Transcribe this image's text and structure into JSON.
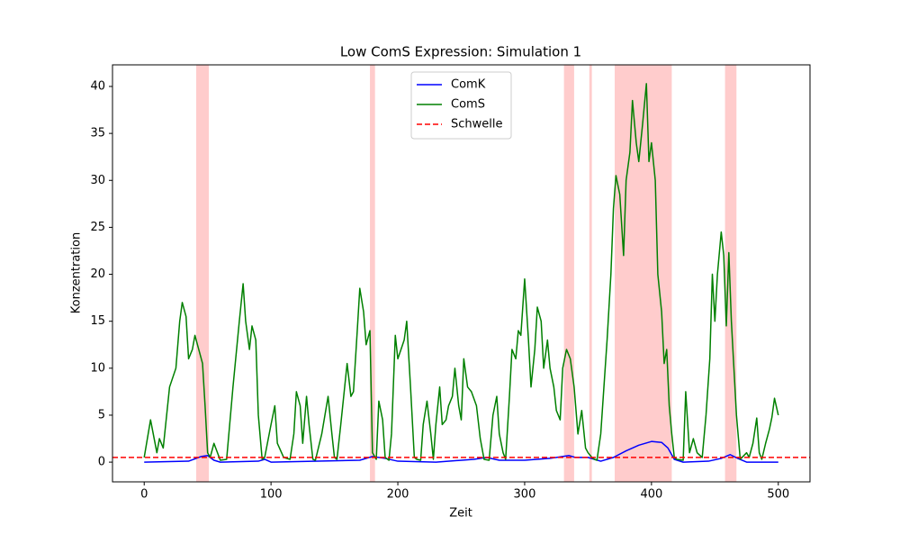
{
  "chart_data": {
    "type": "line",
    "title": "Low ComS Expression: Simulation 1",
    "xlabel": "Zeit",
    "ylabel": "Konzentration",
    "xlim": [
      -25,
      525
    ],
    "ylim": [
      -2.1,
      42.3
    ],
    "xticks": [
      0,
      100,
      200,
      300,
      400,
      500
    ],
    "yticks": [
      0,
      5,
      10,
      15,
      20,
      25,
      30,
      35,
      40
    ],
    "legend": "upper center",
    "shaded_regions": [
      [
        41,
        51
      ],
      [
        178,
        182
      ],
      [
        331,
        339
      ],
      [
        351,
        353
      ],
      [
        371,
        416
      ],
      [
        458,
        467
      ]
    ],
    "shade_color": "#ffcccc",
    "threshold": {
      "name": "Schwelle",
      "value": 0.5,
      "color": "#ff0000"
    },
    "series": [
      {
        "name": "ComK",
        "color": "#0000ff",
        "x": [
          0,
          35,
          45,
          50,
          55,
          60,
          90,
          95,
          100,
          170,
          180,
          190,
          200,
          230,
          260,
          270,
          280,
          300,
          320,
          335,
          340,
          350,
          355,
          360,
          370,
          380,
          390,
          400,
          408,
          413,
          418,
          425,
          445,
          455,
          462,
          468,
          475,
          500
        ],
        "values": [
          0,
          0.1,
          0.6,
          0.7,
          0.2,
          0,
          0.1,
          0.3,
          0,
          0.2,
          0.6,
          0.4,
          0.1,
          0,
          0.3,
          0.5,
          0.2,
          0.2,
          0.4,
          0.7,
          0.5,
          0.5,
          0.3,
          0.1,
          0.5,
          1.2,
          1.8,
          2.2,
          2.1,
          1.5,
          0.3,
          0,
          0.1,
          0.4,
          0.8,
          0.4,
          0,
          0
        ]
      },
      {
        "name": "ComS",
        "color": "#008000",
        "x": [
          0,
          5,
          10,
          12,
          15,
          20,
          25,
          28,
          30,
          33,
          35,
          38,
          40,
          43,
          46,
          48,
          50,
          52,
          55,
          60,
          65,
          70,
          75,
          78,
          80,
          83,
          85,
          88,
          90,
          93,
          95,
          100,
          103,
          105,
          110,
          115,
          118,
          120,
          123,
          125,
          128,
          130,
          133,
          135,
          140,
          145,
          148,
          150,
          152,
          155,
          160,
          163,
          165,
          168,
          170,
          173,
          175,
          178,
          180,
          183,
          185,
          188,
          190,
          193,
          195,
          198,
          200,
          205,
          207,
          210,
          213,
          215,
          218,
          220,
          223,
          226,
          228,
          230,
          233,
          235,
          238,
          240,
          243,
          245,
          248,
          250,
          252,
          255,
          258,
          262,
          265,
          268,
          272,
          275,
          278,
          280,
          283,
          285,
          288,
          290,
          293,
          295,
          297,
          300,
          303,
          305,
          308,
          310,
          313,
          315,
          318,
          320,
          323,
          325,
          328,
          330,
          333,
          336,
          339,
          342,
          345,
          348,
          350,
          353,
          355,
          357,
          360,
          362,
          365,
          368,
          370,
          372,
          375,
          378,
          380,
          383,
          385,
          388,
          390,
          393,
          396,
          398,
          400,
          403,
          405,
          408,
          410,
          412,
          414,
          416,
          418,
          420,
          425,
          427,
          430,
          433,
          436,
          440,
          443,
          446,
          448,
          450,
          452,
          455,
          457,
          459,
          461,
          463,
          465,
          467,
          470,
          475,
          477,
          480,
          483,
          485,
          487,
          490,
          493,
          495,
          497,
          500
        ],
        "values": [
          0.5,
          4.5,
          1,
          2.5,
          1.5,
          8,
          10,
          15,
          17,
          15.5,
          11,
          12,
          13.5,
          12,
          10.5,
          6,
          1,
          0.5,
          2,
          0.2,
          0.3,
          8,
          15,
          19,
          15,
          12,
          14.5,
          13,
          5,
          0.3,
          0.5,
          4,
          6,
          2,
          0.5,
          0.3,
          3,
          7.5,
          6,
          2,
          7,
          4,
          0.3,
          0.2,
          3,
          7,
          3,
          0.5,
          0.3,
          4,
          10.5,
          7,
          7.5,
          14,
          18.5,
          16,
          12.5,
          14,
          1,
          0.3,
          6.5,
          4.5,
          0.5,
          0.2,
          3,
          13.5,
          11,
          13,
          15,
          8,
          0.5,
          0.3,
          0.2,
          4,
          6.5,
          3,
          0.3,
          4,
          8,
          4,
          4.5,
          6,
          7,
          10,
          6,
          4.5,
          11,
          8,
          7.5,
          6,
          2.5,
          0.3,
          0.2,
          5,
          7,
          3,
          1,
          0.3,
          7,
          12,
          11,
          14,
          13.5,
          19.5,
          13,
          8,
          12,
          16.5,
          15,
          10,
          13,
          10,
          8,
          5.5,
          4.5,
          10,
          12,
          11,
          8,
          3,
          5.5,
          1.5,
          1,
          0.5,
          0.3,
          0.2,
          3,
          7,
          13,
          20,
          27,
          30.5,
          28.5,
          22,
          30,
          33,
          38.5,
          34,
          32,
          36,
          40.3,
          32,
          34,
          30,
          20,
          16,
          10.5,
          12,
          6,
          3,
          0.5,
          0.3,
          0.2,
          7.5,
          1,
          2.5,
          1,
          0.5,
          5,
          11,
          20,
          15,
          20,
          24.5,
          22,
          14.5,
          22.3,
          15,
          10,
          5,
          0.3,
          1,
          0.5,
          2,
          4.7,
          1,
          0.3,
          2,
          3.5,
          4.8,
          6.8,
          5
        ]
      }
    ]
  }
}
